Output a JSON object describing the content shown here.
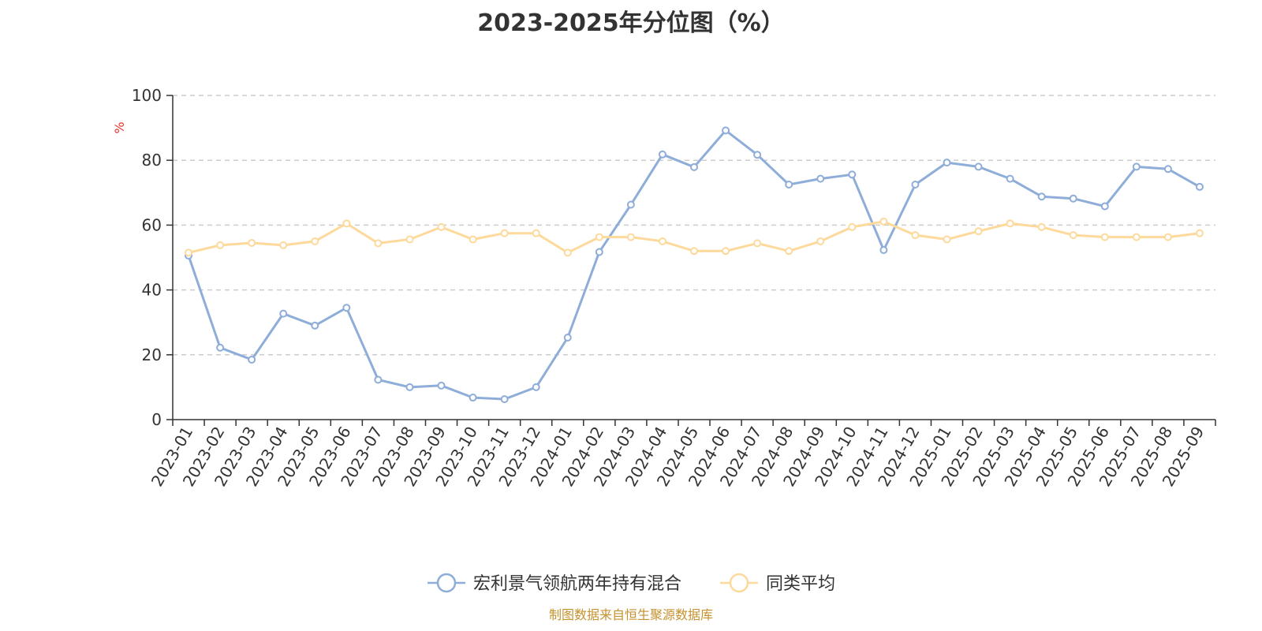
{
  "chart_data": {
    "type": "line",
    "title": "2023-2025年分位图（%）",
    "ylabel": "%",
    "xlabel": "",
    "ylim": [
      0,
      100
    ],
    "yticks": [
      "0",
      "20",
      "40",
      "60",
      "80",
      "100"
    ],
    "grid": true,
    "legend_position": "bottom-center",
    "categories": [
      "2023-01",
      "2023-02",
      "2023-03",
      "2023-04",
      "2023-05",
      "2023-06",
      "2023-07",
      "2023-08",
      "2023-09",
      "2023-10",
      "2023-11",
      "2023-12",
      "2024-01",
      "2024-02",
      "2024-03",
      "2024-04",
      "2024-05",
      "2024-06",
      "2024-07",
      "2024-08",
      "2024-09",
      "2024-10",
      "2024-11",
      "2024-12",
      "2025-01",
      "2025-02",
      "2025-03",
      "2025-04",
      "2025-05",
      "2025-06",
      "2025-07",
      "2025-08",
      "2025-09"
    ],
    "series": [
      {
        "name": "宏利景气领航两年持有混合",
        "color": "#8eadd8",
        "values": [
          50.6,
          22.2,
          18.5,
          32.7,
          29.0,
          34.5,
          12.3,
          10.0,
          10.5,
          6.8,
          6.3,
          10.0,
          25.3,
          51.7,
          66.3,
          81.8,
          77.9,
          89.2,
          81.7,
          72.5,
          74.3,
          75.6,
          52.3,
          72.5,
          79.3,
          78.0,
          74.3,
          68.8,
          68.2,
          65.8,
          78.0,
          77.3,
          71.8
        ]
      },
      {
        "name": "同类平均",
        "color": "#fdd99b",
        "values": [
          51.5,
          53.8,
          54.5,
          53.8,
          55.0,
          60.5,
          54.4,
          55.6,
          59.4,
          55.6,
          57.5,
          57.5,
          51.5,
          56.3,
          56.3,
          55.0,
          52.0,
          52.0,
          54.4,
          52.0,
          55.0,
          59.4,
          61.1,
          56.9,
          55.6,
          58.1,
          60.5,
          59.4,
          56.9,
          56.3,
          56.3,
          56.3,
          57.5
        ]
      }
    ]
  },
  "footer": {
    "source": "制图数据来自恒生聚源数据库"
  }
}
